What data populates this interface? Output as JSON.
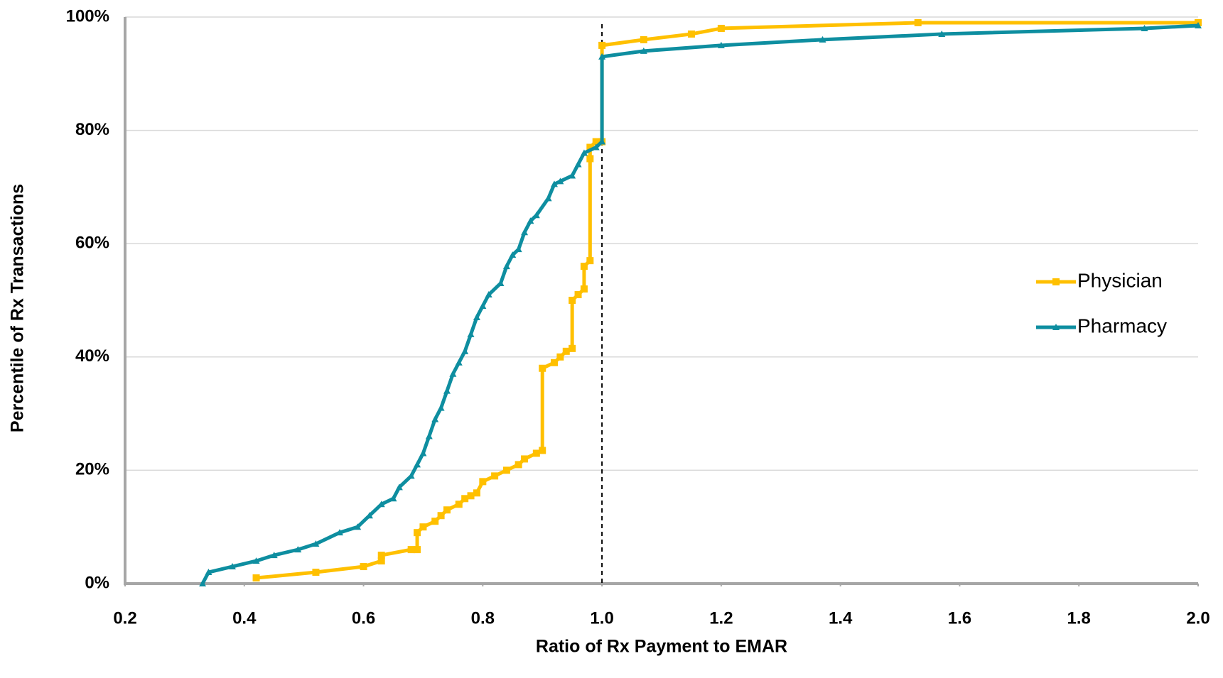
{
  "chart_data": {
    "type": "line",
    "x_label": "Ratio of Rx Payment to EMAR",
    "y_label": "Percentile of Rx Transactions",
    "xlim": [
      0.2,
      2.0
    ],
    "xticks": [
      0.2,
      0.4,
      0.6,
      0.8,
      {
        "value": 1,
        "label": "1.0"
      },
      1.2,
      1.4,
      1.6,
      1.8,
      {
        "value": 2,
        "label": "2.0"
      }
    ],
    "ylim": [
      0,
      100
    ],
    "yticks": [
      {
        "value": 0,
        "label": "0%"
      },
      {
        "value": 20,
        "label": "20%"
      },
      {
        "value": 40,
        "label": "40%"
      },
      {
        "value": 60,
        "label": "60%"
      },
      {
        "value": 80,
        "label": "80%"
      },
      {
        "value": 100,
        "label": "100%"
      }
    ],
    "grid": true,
    "legend": "right",
    "vline": 1,
    "series": [
      {
        "name": "Physician",
        "color": "#ffc000",
        "marker": "square",
        "x": [
          0.42,
          0.52,
          0.6,
          0.63,
          0.63,
          0.68,
          0.69,
          0.69,
          0.7,
          0.72,
          0.73,
          0.74,
          0.76,
          0.77,
          0.78,
          0.79,
          0.8,
          0.82,
          0.84,
          0.86,
          0.87,
          0.89,
          0.9,
          0.9,
          0.92,
          0.93,
          0.94,
          0.95,
          0.95,
          0.96,
          0.97,
          0.97,
          0.98,
          0.98,
          0.98,
          0.99,
          1.0,
          1.0,
          1.07,
          1.15,
          1.2,
          1.53,
          2.0
        ],
        "values": [
          1,
          2,
          3,
          4,
          5,
          6,
          6,
          9,
          10,
          11,
          12,
          13,
          14,
          15,
          15.5,
          16,
          18,
          19,
          20,
          21,
          22,
          23,
          23.5,
          38,
          39,
          40,
          41,
          41.5,
          50,
          51,
          52,
          56,
          57,
          75,
          77,
          78,
          78,
          95,
          96,
          97,
          98,
          99,
          99
        ]
      },
      {
        "name": "Pharmacy",
        "color": "#0e8ea0",
        "marker": "triangle",
        "x": [
          0.33,
          0.34,
          0.38,
          0.42,
          0.45,
          0.49,
          0.52,
          0.56,
          0.59,
          0.61,
          0.63,
          0.65,
          0.66,
          0.68,
          0.69,
          0.7,
          0.71,
          0.72,
          0.73,
          0.74,
          0.75,
          0.76,
          0.77,
          0.78,
          0.79,
          0.8,
          0.81,
          0.83,
          0.84,
          0.85,
          0.86,
          0.87,
          0.88,
          0.89,
          0.91,
          0.92,
          0.93,
          0.95,
          0.96,
          0.97,
          0.99,
          1.0,
          1.0,
          1.07,
          1.2,
          1.37,
          1.57,
          1.91,
          2.0
        ],
        "values": [
          0,
          2,
          3,
          4,
          5,
          6,
          7,
          9,
          10,
          12,
          14,
          15,
          17,
          19,
          21,
          23,
          26,
          29,
          31,
          34,
          37,
          39,
          41,
          44,
          47,
          49,
          51,
          53,
          56,
          58,
          59,
          62,
          64,
          65,
          68,
          70.5,
          71,
          72,
          74,
          76,
          77,
          78,
          93,
          94,
          95,
          96,
          97,
          98,
          98.5
        ]
      }
    ]
  }
}
